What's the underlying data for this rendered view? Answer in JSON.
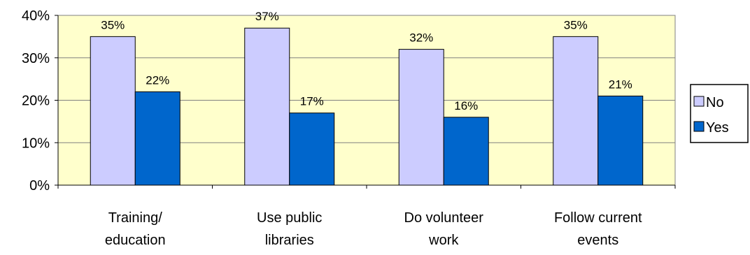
{
  "chart_data": {
    "type": "bar",
    "categories": [
      [
        "Training/",
        "education"
      ],
      [
        "Use public",
        "libraries"
      ],
      [
        "Do volunteer",
        "work"
      ],
      [
        "Follow current",
        "events"
      ]
    ],
    "series": [
      {
        "name": "No",
        "values": [
          35,
          37,
          32,
          35
        ],
        "labels": [
          "35%",
          "37%",
          "32%",
          "35%"
        ],
        "color": "#ccccff"
      },
      {
        "name": "Yes",
        "values": [
          22,
          17,
          16,
          21
        ],
        "labels": [
          "22%",
          "17%",
          "16%",
          "21%"
        ],
        "color": "#0066cc"
      }
    ],
    "y_ticks": [
      "0%",
      "10%",
      "20%",
      "30%",
      "40%"
    ],
    "ylim": [
      0,
      40
    ],
    "plot_background": "#ffffcc",
    "grid": true,
    "legend_position": "right"
  }
}
